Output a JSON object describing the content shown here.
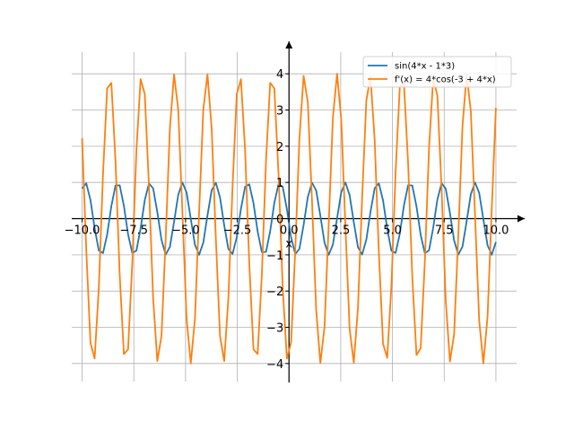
{
  "chart_data": {
    "type": "line",
    "title": "",
    "xlabel": "x",
    "ylabel": "",
    "xlim": [
      -10.5,
      11
    ],
    "ylim": [
      -4.5,
      4.6
    ],
    "x_ticks": [
      -10.0,
      -7.5,
      -5.0,
      -2.5,
      0.0,
      2.5,
      5.0,
      7.5,
      10.0
    ],
    "x_tick_labels": [
      "−10.0",
      "−7.5",
      "−5.0",
      "−2.5",
      "0.0",
      "2.5",
      "5.0",
      "7.5",
      "10.0"
    ],
    "y_ticks": [
      -4,
      -3,
      -2,
      -1,
      0,
      1,
      2,
      3,
      4
    ],
    "y_tick_labels": [
      "−4",
      "−3",
      "−2",
      "−1",
      "0",
      "1",
      "2",
      "3",
      "4"
    ],
    "grid": true,
    "legend_position": "top-right",
    "x_range": [
      -10,
      10
    ],
    "sample_points": 100,
    "series": [
      {
        "name": "sin(4*x - 1*3)",
        "expression": "sin(4*x - 3)",
        "color": "#1f77b4"
      },
      {
        "name": "f'(x) = 4*cos(-3 + 4*x)",
        "expression": "4*cos(-3 + 4*x)",
        "color": "#ff7f0e"
      }
    ]
  }
}
